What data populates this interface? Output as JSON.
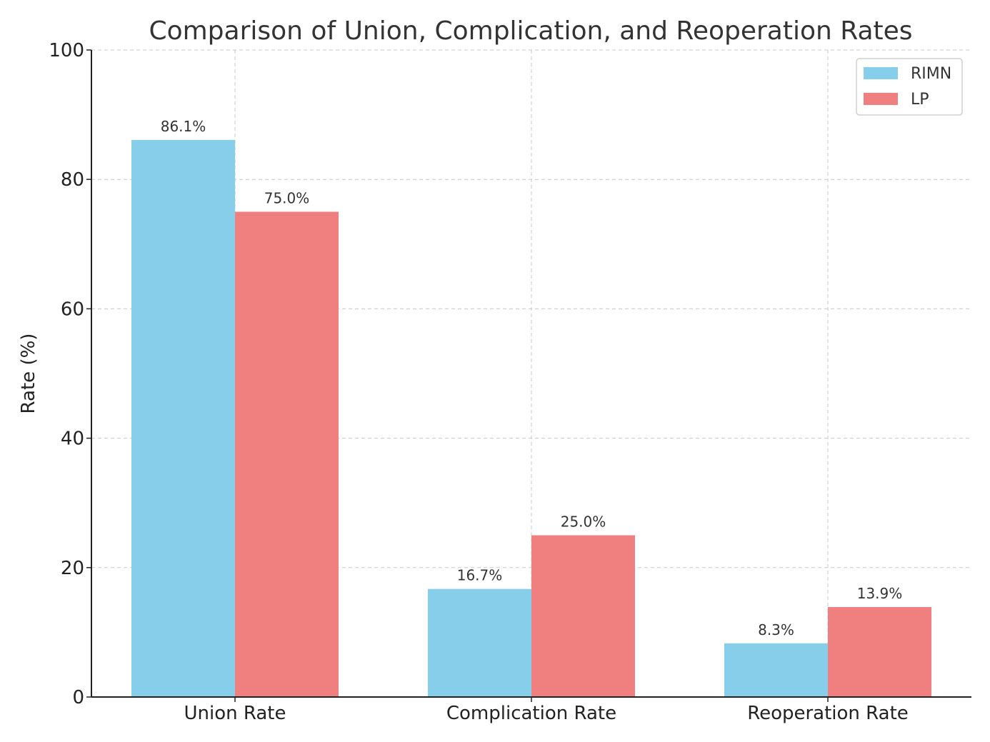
{
  "chart_data": {
    "type": "bar",
    "title": "Comparison of Union, Complication, and Reoperation Rates",
    "xlabel": "",
    "ylabel": "Rate (%)",
    "categories": [
      "Union Rate",
      "Complication Rate",
      "Reoperation Rate"
    ],
    "series": [
      {
        "name": "RIMN",
        "color": "#87ceeb",
        "values": [
          86.1,
          16.7,
          8.3
        ],
        "labels": [
          "86.1%",
          "16.7%",
          "8.3%"
        ]
      },
      {
        "name": "LP",
        "color": "#f08080",
        "values": [
          75.0,
          25.0,
          13.9
        ],
        "labels": [
          "75.0%",
          "25.0%",
          "13.9%"
        ]
      }
    ],
    "ylim": [
      0,
      100
    ],
    "yticks": [
      0,
      20,
      40,
      60,
      80,
      100
    ],
    "ytick_labels": [
      "0",
      "20",
      "40",
      "60",
      "80",
      "100"
    ],
    "grid": true,
    "legend_position": "top-right"
  }
}
